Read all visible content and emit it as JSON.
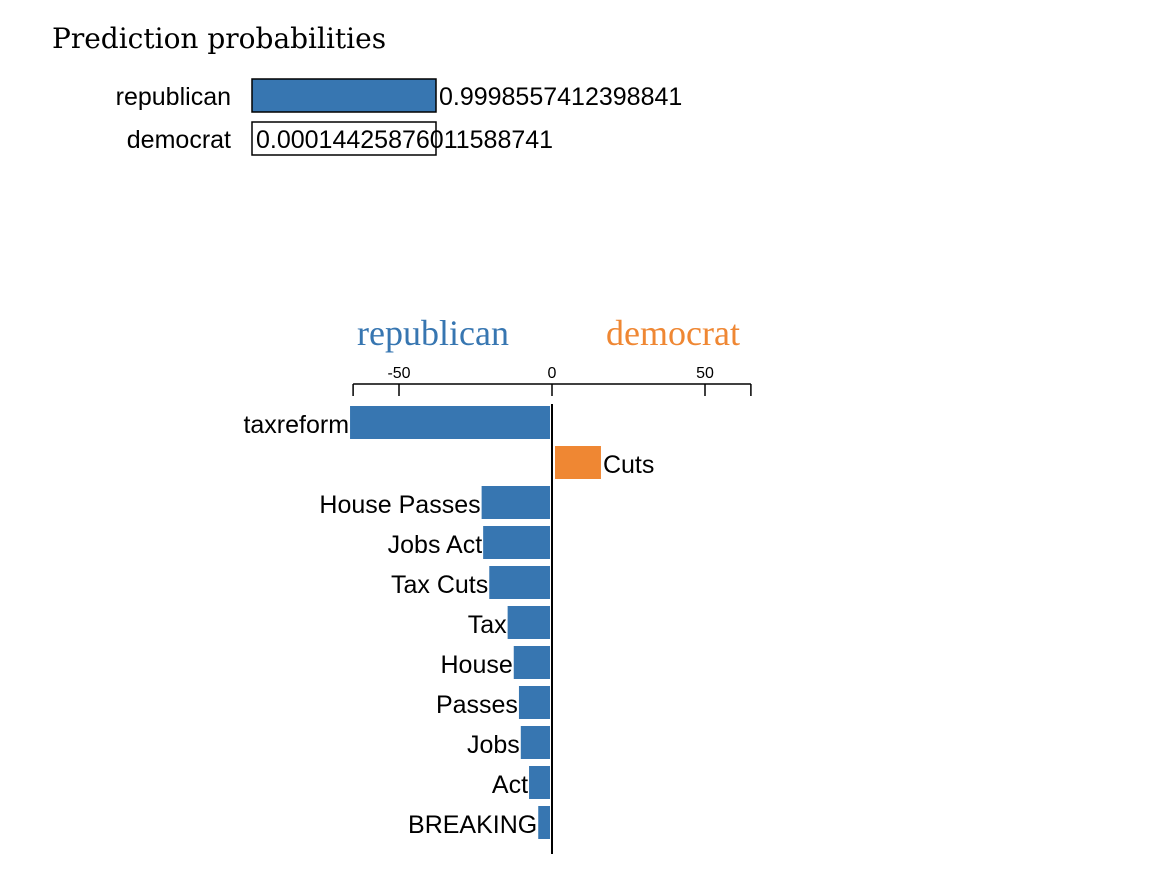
{
  "colors": {
    "republican": "#3776b1",
    "democrat": "#ef8733",
    "axis": "#000000"
  },
  "prediction": {
    "title": "Prediction probabilities",
    "items": [
      {
        "label": "republican",
        "value": 0.9998557412398841,
        "value_text": "0.9998557412398841",
        "color": "#3776b1"
      },
      {
        "label": "democrat",
        "value": 0.00014425876011588741,
        "value_text": "0.00014425876011588741",
        "color": "#ef8733"
      }
    ]
  },
  "chart_data": {
    "type": "bar",
    "orientation": "horizontal",
    "class_headers": {
      "left": "republican",
      "right": "democrat"
    },
    "xlim": [
      -65,
      65
    ],
    "ticks": [
      {
        "value": -50,
        "label": "-50"
      },
      {
        "value": 0,
        "label": "0"
      },
      {
        "value": 50,
        "label": "50"
      }
    ],
    "bars": [
      {
        "label": "taxreform",
        "value": -66
      },
      {
        "label": "Cuts",
        "value": 16
      },
      {
        "label": "House Passes",
        "value": -23
      },
      {
        "label": "Jobs Act",
        "value": -22.5
      },
      {
        "label": "Tax Cuts",
        "value": -20.5
      },
      {
        "label": "Tax",
        "value": -14.5
      },
      {
        "label": "House",
        "value": -12.5
      },
      {
        "label": "Passes",
        "value": -10.8
      },
      {
        "label": "Jobs",
        "value": -10.2
      },
      {
        "label": "Act",
        "value": -7.5
      },
      {
        "label": "BREAKING",
        "value": -4.5
      }
    ]
  }
}
